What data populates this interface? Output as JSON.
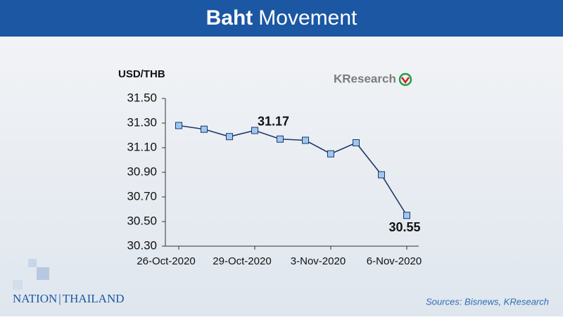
{
  "header": {
    "title_strong": "Baht",
    "title": "Movement"
  },
  "chart_data": {
    "type": "line",
    "y_label": "USD/THB",
    "categories": [
      "26-Oct-2020",
      null,
      null,
      "29-Oct-2020",
      null,
      null,
      "3-Nov-2020",
      null,
      null,
      "6-Nov-2020"
    ],
    "series": [
      {
        "name": "USD/THB",
        "color": "#1f3864",
        "marker_color": "#9cc8f2",
        "values": [
          31.28,
          31.25,
          31.19,
          31.24,
          31.17,
          31.16,
          31.05,
          31.14,
          30.88,
          30.55
        ],
        "value_labels": [
          null,
          null,
          null,
          null,
          "31.17",
          null,
          null,
          null,
          null,
          "30.55"
        ]
      }
    ],
    "ylim": [
      30.3,
      31.5
    ],
    "yticks": [
      {
        "value": 30.3,
        "label": "30.30"
      },
      {
        "value": 30.5,
        "label": "30.50"
      },
      {
        "value": 30.7,
        "label": "30.70"
      },
      {
        "value": 30.9,
        "label": "30.90"
      },
      {
        "value": 31.1,
        "label": "31.10"
      },
      {
        "value": 31.3,
        "label": "31.30"
      },
      {
        "value": 31.5,
        "label": "31.50"
      }
    ],
    "grid": false
  },
  "branding": {
    "logo": "KResearch",
    "publisher": [
      "NATION",
      "THAILAND"
    ],
    "source": "Sources: Bisnews, KResearch"
  }
}
